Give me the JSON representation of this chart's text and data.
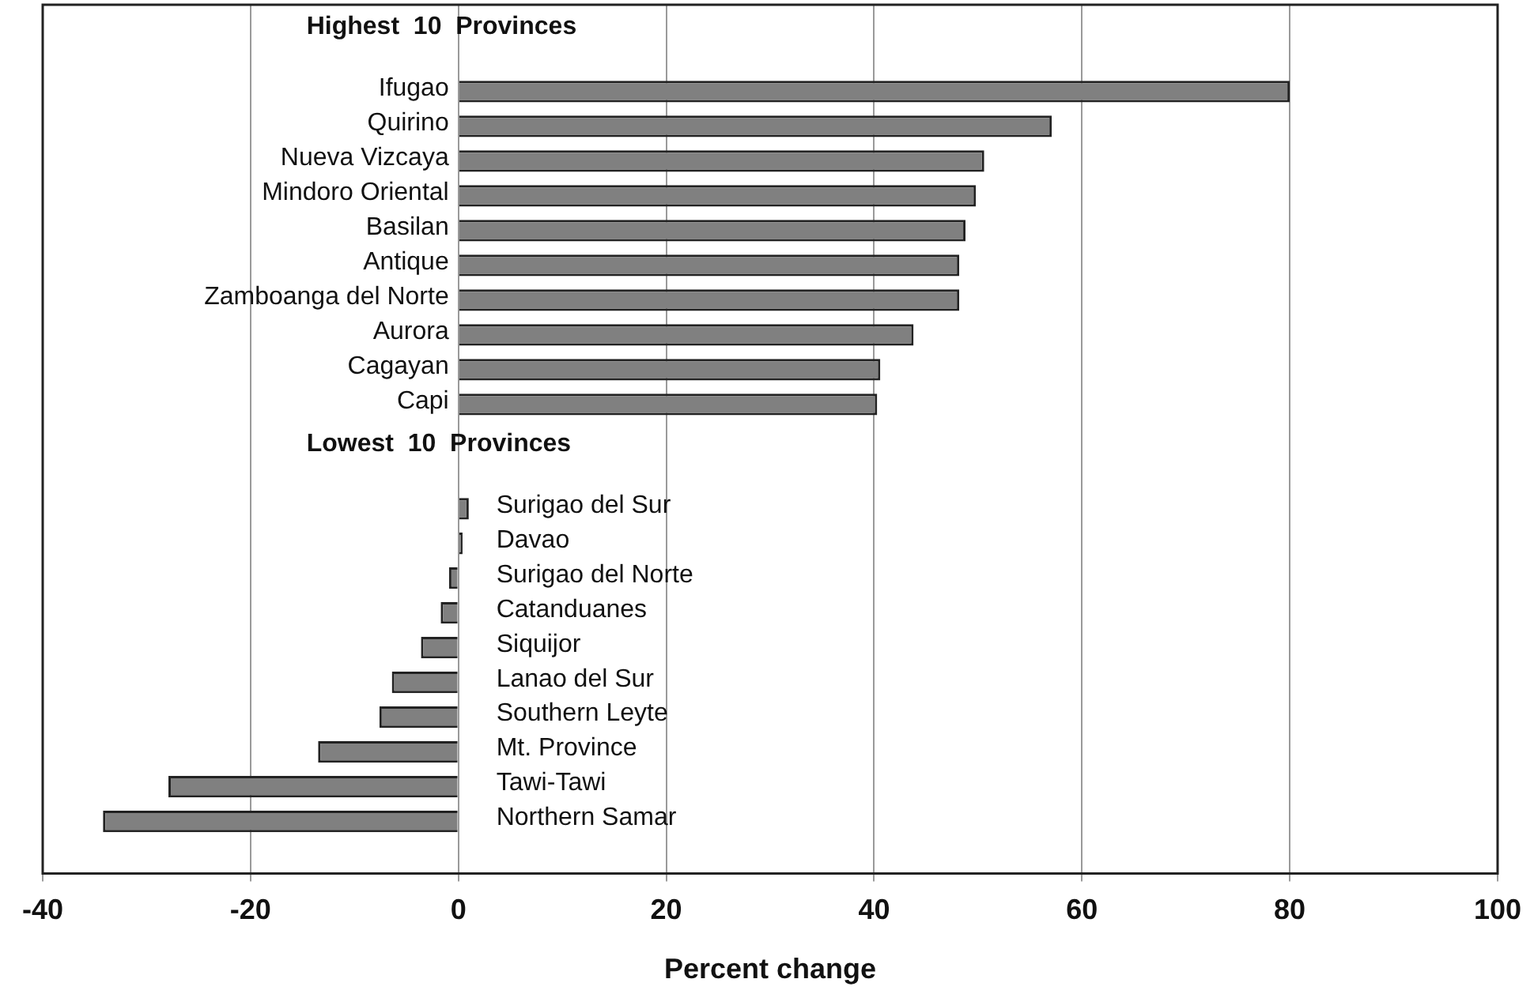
{
  "chart_data": {
    "type": "bar",
    "orientation": "horizontal",
    "xlabel": "Percent change",
    "annotations": [
      "Highest  10  Provinces",
      "Lowest  10  Provinces"
    ],
    "categories": [
      null,
      null,
      "Ifugao",
      "Quirino",
      "Nueva Vizcaya",
      "Mindoro Oriental",
      "Basilan",
      "Antique",
      "Zamboanga del Norte",
      "Aurora",
      "Cagayan",
      "Capi",
      null,
      null,
      "Surigao del Sur",
      "Davao",
      "Surigao del Norte",
      "Catanduanes",
      "Siquijor",
      "Lanao del Sur",
      "Southern Leyte",
      "Mt. Province",
      "Tawi-Tawi",
      "Northern Samar",
      null
    ],
    "values": [
      null,
      null,
      80,
      57.1,
      50.6,
      49.8,
      48.8,
      48.2,
      48.2,
      43.8,
      40.6,
      40.3,
      null,
      null,
      1.0,
      0.4,
      -0.9,
      -1.7,
      -3.6,
      -6.4,
      -7.6,
      -13.5,
      -27.9,
      -34.2,
      null
    ],
    "color": "#808080",
    "xlim": [
      -40,
      100
    ],
    "xticks": [
      -40,
      -20,
      0,
      20,
      40,
      60,
      80,
      100
    ],
    "grid": "x"
  }
}
